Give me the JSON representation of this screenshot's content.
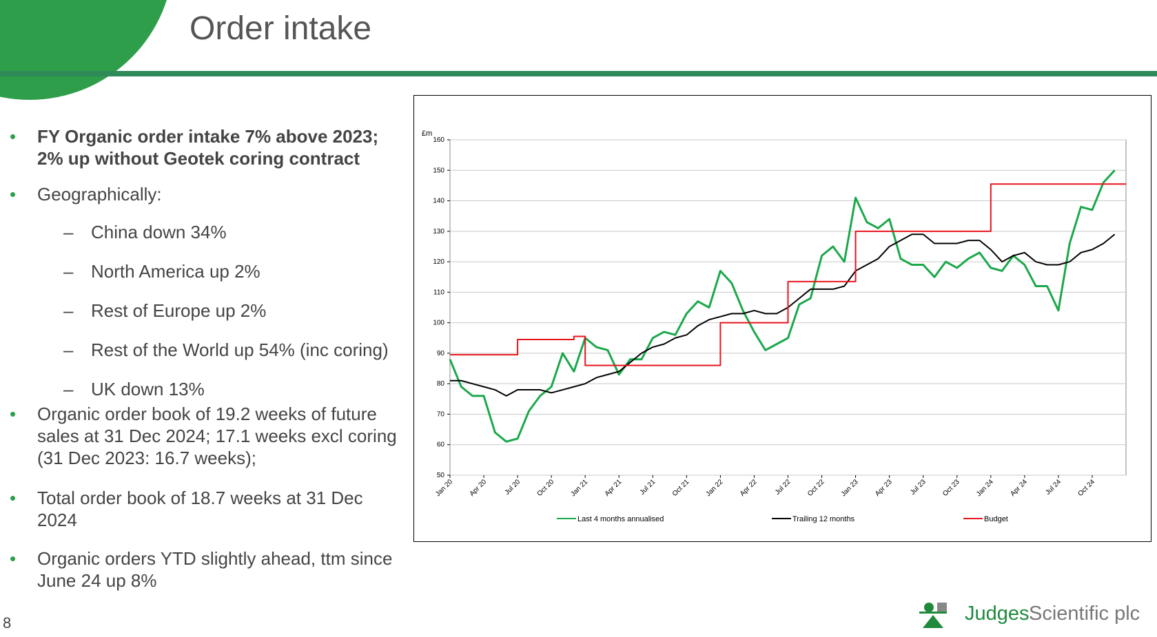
{
  "title": "Order intake",
  "bullets": [
    {
      "text": "FY Organic order intake 7% above 2023; 2% up without Geotek coring contract"
    },
    {
      "text": "Geographically:",
      "sub": [
        "China down 34%",
        "North America up 2%",
        "Rest of Europe up 2%",
        "Rest of the World up 54% (inc coring)",
        "UK down 13%"
      ]
    },
    {
      "text": "Organic order book of 19.2 weeks of future sales at 31 Dec 2024; 17.1 weeks excl coring (31 Dec 2023: 16.7 weeks);"
    },
    {
      "text": "Total order book of 18.7 weeks at 31 Dec 2024"
    },
    {
      "text": "Organic orders YTD slightly ahead, ttm since June 24 up 8%"
    }
  ],
  "page_number": "8",
  "logo": {
    "name": "Judges",
    "suffix": "Scientific plc"
  },
  "chart_data": {
    "type": "line",
    "y_label": "£m",
    "ylim": [
      50,
      160
    ],
    "yticks": [
      50,
      60,
      70,
      80,
      90,
      100,
      110,
      120,
      130,
      140,
      150,
      160
    ],
    "grid": true,
    "legend": "bottom",
    "categories": [
      "Jan 20",
      null,
      null,
      "Apr 20",
      null,
      null,
      "Jul 20",
      null,
      null,
      "Oct 20",
      null,
      null,
      "Jan 21",
      null,
      null,
      "Apr 21",
      null,
      null,
      "Jul 21",
      null,
      null,
      "Oct 21",
      null,
      null,
      "Jan 22",
      null,
      null,
      "Apr 22",
      null,
      null,
      "Jul 22",
      null,
      null,
      "Oct 22",
      null,
      null,
      "Jan 23",
      null,
      null,
      "Apr 23",
      null,
      null,
      "Jul 23",
      null,
      null,
      "Oct 23",
      null,
      null,
      "Jan 24",
      null,
      null,
      "Apr 24",
      null,
      null,
      "Jul 24",
      null,
      null,
      "Oct 24",
      null,
      null
    ],
    "series": [
      {
        "name": "Last 4 months annualised",
        "color": "#1aa84a",
        "values": [
          88,
          79,
          76,
          76,
          64,
          61,
          62,
          71,
          76,
          79,
          90,
          84,
          95,
          92,
          91,
          83,
          88,
          88,
          95,
          97,
          96,
          103,
          107,
          105,
          117,
          113,
          104,
          97,
          91,
          93,
          95,
          106,
          108,
          122,
          125,
          120,
          141,
          133,
          131,
          134,
          121,
          119,
          119,
          115,
          120,
          118,
          121,
          123,
          118,
          117,
          122,
          119,
          112,
          112,
          104,
          126,
          138,
          137,
          146,
          150
        ]
      },
      {
        "name": "Trailing 12 months",
        "color": "#000000",
        "values": [
          81,
          81,
          80,
          79,
          78,
          76,
          78,
          78,
          78,
          77,
          78,
          79,
          80,
          82,
          83,
          84,
          87,
          90,
          92,
          93,
          95,
          96,
          99,
          101,
          102,
          103,
          103,
          104,
          103,
          103,
          105,
          108,
          111,
          111,
          111,
          112,
          117,
          119,
          121,
          125,
          127,
          129,
          129,
          126,
          126,
          126,
          127,
          127,
          124,
          120,
          122,
          123,
          120,
          119,
          119,
          120,
          123,
          124,
          126,
          129
        ]
      },
      {
        "name": "Budget",
        "color": "#e8131b",
        "step": true,
        "values": [
          89.5,
          89.5,
          89.5,
          89.5,
          89.5,
          89.5,
          94.5,
          94.5,
          94.5,
          94.5,
          94.5,
          95.5,
          86,
          86,
          86,
          86,
          86,
          86,
          86,
          86,
          86,
          86,
          86,
          86,
          100,
          100,
          100,
          100,
          100,
          100,
          113.5,
          113.5,
          113.5,
          113.5,
          113.5,
          113.5,
          130,
          130,
          130,
          130,
          130,
          130,
          130,
          130,
          130,
          130,
          130,
          130,
          145.5,
          145.5,
          145.5,
          145.5,
          145.5,
          145.5,
          145.5,
          145.5,
          145.5,
          145.5,
          145.5,
          145.5
        ]
      }
    ]
  }
}
